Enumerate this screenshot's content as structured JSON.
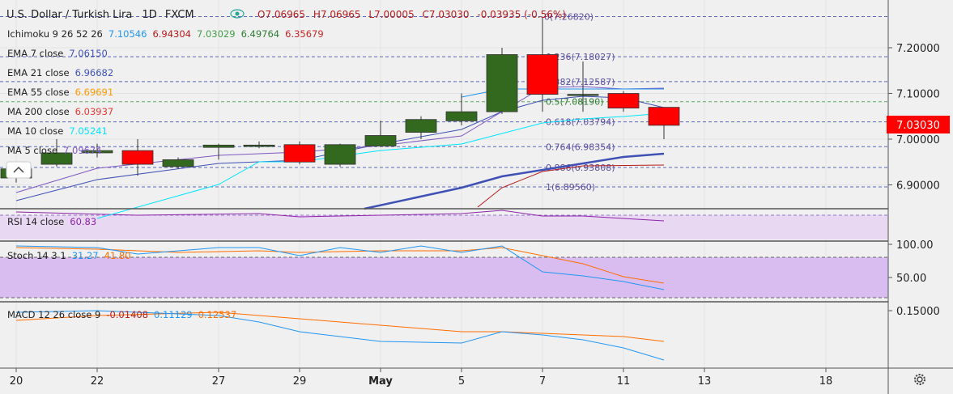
{
  "header": {
    "symbol": "U.S. Dollar / Turkish Lira",
    "interval": "1D",
    "exchange": "FXCM",
    "ohlc": {
      "o": "O7.06965",
      "h": "H7.06965",
      "l": "L7.00005",
      "c": "C7.03030",
      "chg": "-0.03935 (-0.56%)"
    }
  },
  "indicators": [
    {
      "label": "Ichimoku 9 26 52 26",
      "values": [
        "7.10546",
        "6.94304",
        "7.03029",
        "6.49764",
        "6.35679"
      ],
      "colors": [
        "#2196f3",
        "#b71c1c",
        "#43a047",
        "#2e7d32",
        "#c62828"
      ]
    },
    {
      "label": "EMA 7 close",
      "values": [
        "7.06150"
      ],
      "colors": [
        "#3f51b5"
      ]
    },
    {
      "label": "EMA 21 close",
      "values": [
        "6.96682"
      ],
      "colors": [
        "#3f51b5"
      ]
    },
    {
      "label": "EMA 55 close",
      "values": [
        "6.69691"
      ],
      "colors": [
        "#ff9800"
      ]
    },
    {
      "label": "MA 200 close",
      "values": [
        "6.03937"
      ],
      "colors": [
        "#e53935"
      ]
    },
    {
      "label": "MA 10 close",
      "values": [
        "7.05241"
      ],
      "colors": [
        "#00e5ff"
      ]
    },
    {
      "label": "MA 5 close",
      "values": [
        "7.09674"
      ],
      "colors": [
        "#7e57c2"
      ]
    }
  ],
  "fib_labels": [
    {
      "text": "0(7.26820)",
      "value": 7.2682
    },
    {
      "text": "0.236(7.18027)",
      "value": 7.18027
    },
    {
      "text": "0.382(7.12587)",
      "value": 7.12587
    },
    {
      "text": "0.5(7.08190)",
      "value": 7.0819
    },
    {
      "text": "0.618(7.03794)",
      "value": 7.03794
    },
    {
      "text": "0.764(6.98354)",
      "value": 6.98354
    },
    {
      "text": "0.886(6.93808)",
      "value": 6.93808
    },
    {
      "text": "1(6.89560)",
      "value": 6.8956
    }
  ],
  "last_price": {
    "text": "7.03030",
    "value": 7.0303
  },
  "panes": {
    "rsi": {
      "label": "RSI 14 close",
      "value": "60.83"
    },
    "stoch": {
      "label": "Stoch 14 3 1",
      "k": "31.27",
      "d": "41.80",
      "axis": [
        "100.00",
        "50.00"
      ]
    },
    "macd": {
      "label": "MACD 12 26 close 9",
      "values": [
        "-0.01408",
        "0.11129",
        "0.12537"
      ],
      "axis": [
        "0.15000"
      ]
    }
  },
  "colors": {
    "bull": "#33691e",
    "bear": "#ff0000",
    "price_tag": "#ff0000"
  },
  "settings_icon": "gear-icon",
  "chart_data": {
    "type": "candlestick",
    "title": "U.S. Dollar / Turkish Lira 1D FXCM",
    "x_ticks": [
      "20",
      "22",
      "27",
      "29",
      "May",
      "5",
      "7",
      "11",
      "13",
      "18"
    ],
    "ylim": [
      6.85,
      7.3
    ],
    "y_ticks": [
      "7.20000",
      "7.10000",
      "7.00000",
      "6.90000"
    ],
    "candles": [
      {
        "x": "Apr 20",
        "o": 6.915,
        "h": 6.935,
        "l": 6.905,
        "c": 6.935
      },
      {
        "x": "Apr 21",
        "o": 6.945,
        "h": 7.0,
        "l": 6.94,
        "c": 6.97
      },
      {
        "x": "Apr 22",
        "o": 6.97,
        "h": 6.99,
        "l": 6.96,
        "c": 6.975
      },
      {
        "x": "Apr 23",
        "o": 6.975,
        "h": 7.0,
        "l": 6.92,
        "c": 6.945
      },
      {
        "x": "Apr 24",
        "o": 6.94,
        "h": 6.96,
        "l": 6.935,
        "c": 6.955
      },
      {
        "x": "Apr 27",
        "o": 6.982,
        "h": 6.99,
        "l": 6.955,
        "c": 6.987
      },
      {
        "x": "Apr 28",
        "o": 6.984,
        "h": 6.995,
        "l": 6.98,
        "c": 6.987
      },
      {
        "x": "Apr 29",
        "o": 6.988,
        "h": 6.995,
        "l": 6.945,
        "c": 6.95
      },
      {
        "x": "Apr 30",
        "o": 6.945,
        "h": 6.99,
        "l": 6.94,
        "c": 6.988
      },
      {
        "x": "May 1",
        "o": 6.985,
        "h": 7.04,
        "l": 6.985,
        "c": 7.008
      },
      {
        "x": "May 4",
        "o": 7.015,
        "h": 7.05,
        "l": 7.0,
        "c": 7.043
      },
      {
        "x": "May 5",
        "o": 7.04,
        "h": 7.1,
        "l": 7.03,
        "c": 7.06
      },
      {
        "x": "May 6",
        "o": 7.06,
        "h": 7.2,
        "l": 7.055,
        "c": 7.185
      },
      {
        "x": "May 7",
        "o": 7.185,
        "h": 7.268,
        "l": 7.06,
        "c": 7.098
      },
      {
        "x": "May 8",
        "o": 7.098,
        "h": 7.17,
        "l": 7.06,
        "c": 7.098
      },
      {
        "x": "May 11",
        "o": 7.1,
        "h": 7.105,
        "l": 7.06,
        "c": 7.068
      },
      {
        "x": "May 12",
        "o": 7.0697,
        "h": 7.0697,
        "l": 7.0,
        "c": 7.0303
      }
    ],
    "rsi_range": [
      30,
      70
    ],
    "stoch_range": [
      20,
      80
    ],
    "grid": true
  }
}
